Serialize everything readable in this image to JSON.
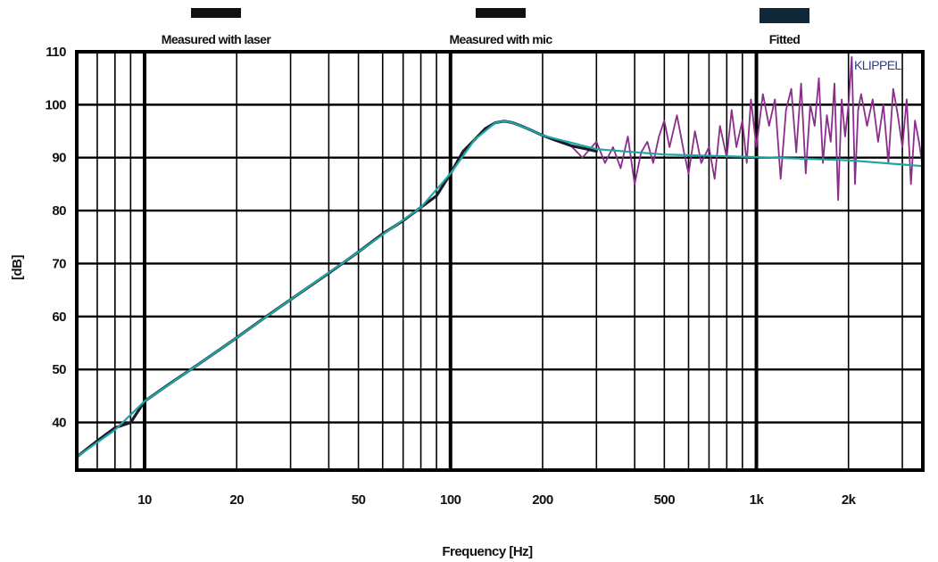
{
  "chart_data": {
    "type": "line",
    "x_scale": "log",
    "xlim": [
      6,
      3500
    ],
    "ylim": [
      31,
      110
    ],
    "xlabel": "Frequency [Hz]",
    "ylabel": "[dB]",
    "grid": true,
    "legend_position": "top",
    "brand": "KLIPPEL",
    "x_ticks": [
      {
        "value": 10,
        "label": "10"
      },
      {
        "value": 20,
        "label": "20"
      },
      {
        "value": 50,
        "label": "50"
      },
      {
        "value": 100,
        "label": "100"
      },
      {
        "value": 200,
        "label": "200"
      },
      {
        "value": 500,
        "label": "500"
      },
      {
        "value": 1000,
        "label": "1k"
      },
      {
        "value": 2000,
        "label": "2k"
      }
    ],
    "y_ticks": [
      {
        "value": 40,
        "label": "40"
      },
      {
        "value": 50,
        "label": "50"
      },
      {
        "value": 60,
        "label": "60"
      },
      {
        "value": 70,
        "label": "70"
      },
      {
        "value": 80,
        "label": "80"
      },
      {
        "value": 90,
        "label": "90"
      },
      {
        "value": 100,
        "label": "100"
      },
      {
        "value": 110,
        "label": "110"
      }
    ],
    "series": [
      {
        "name": "Measured with laser",
        "color": "#1a1a2a",
        "x": [
          6,
          7,
          8,
          9,
          10,
          12,
          15,
          20,
          25,
          30,
          40,
          50,
          60,
          70,
          80,
          90,
          100,
          110,
          120,
          130,
          140,
          150,
          160,
          170,
          180,
          200,
          220,
          250,
          280,
          300
        ],
        "y": [
          33.5,
          36.5,
          39,
          40,
          44,
          47.2,
          51,
          56,
          60,
          63.2,
          68.2,
          72.2,
          75.6,
          78.1,
          80.6,
          82.8,
          87,
          91.2,
          93.4,
          95.5,
          96.6,
          96.9,
          96.6,
          96.0,
          95.4,
          94.2,
          93.3,
          92.2,
          91.6,
          91.2
        ]
      },
      {
        "name": "Measured with mic",
        "color": "#8b2d8b",
        "x": [
          250,
          270,
          300,
          320,
          340,
          360,
          380,
          400,
          420,
          440,
          460,
          480,
          500,
          520,
          550,
          580,
          600,
          630,
          660,
          700,
          730,
          760,
          800,
          830,
          860,
          900,
          930,
          960,
          1000,
          1050,
          1100,
          1150,
          1200,
          1250,
          1300,
          1350,
          1400,
          1450,
          1500,
          1550,
          1600,
          1650,
          1700,
          1750,
          1800,
          1850,
          1900,
          1950,
          2000,
          2050,
          2100,
          2150,
          2200,
          2300,
          2400,
          2500,
          2600,
          2700,
          2800,
          2900,
          3000,
          3100,
          3200,
          3300,
          3400,
          3500
        ],
        "y": [
          92,
          90,
          93,
          89,
          92,
          88,
          94,
          85,
          91,
          93,
          89,
          94,
          97,
          92,
          98,
          91,
          87,
          95,
          89,
          92,
          86,
          96,
          90,
          99,
          92,
          97,
          89,
          101,
          92,
          102,
          96,
          101,
          86,
          99,
          103,
          91,
          104,
          87,
          100,
          96,
          105,
          89,
          98,
          93,
          104,
          82,
          101,
          94,
          100,
          109,
          85,
          99,
          102,
          96,
          101,
          93,
          100,
          89,
          103,
          98,
          92,
          101,
          85,
          97,
          93,
          88
        ]
      },
      {
        "name": "Fitted",
        "color": "#1ea5a5",
        "x": [
          6,
          8,
          10,
          15,
          20,
          30,
          50,
          80,
          100,
          120,
          140,
          150,
          160,
          180,
          200,
          300,
          500,
          1000,
          2000,
          3500
        ],
        "y": [
          33.5,
          38.6,
          44,
          51,
          56,
          63.2,
          72.2,
          80.6,
          87,
          93.4,
          96.6,
          96.9,
          96.6,
          95.4,
          94.2,
          91.6,
          90.6,
          90.1,
          89.5,
          88.4
        ]
      }
    ]
  }
}
